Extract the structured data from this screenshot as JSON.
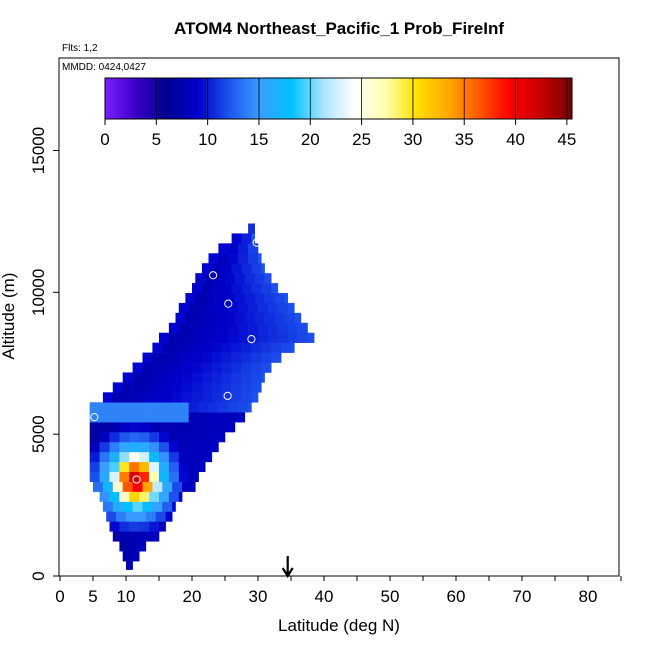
{
  "chart_data": {
    "type": "heatmap",
    "title": "ATOM4 Northeast_Pacific_1 Prob_FireInf",
    "flights_note": "Flts: 1,2",
    "date_note": "MMDD: 0424,0427",
    "xlabel": "Latitude (deg N)",
    "ylabel": "Altitude (m)",
    "xlim": [
      0,
      85
    ],
    "ylim": [
      0,
      17500
    ],
    "x_ticks": [
      0,
      5,
      10,
      20,
      30,
      40,
      50,
      60,
      70,
      80
    ],
    "y_ticks": [
      0,
      5000,
      10000,
      15000
    ],
    "colorbar": {
      "range": [
        0,
        45.5
      ],
      "ticks": [
        0,
        5,
        10,
        15,
        20,
        25,
        30,
        35,
        40,
        45
      ],
      "colors": [
        "#7e1cff",
        "#3a00c8",
        "#00008f",
        "#0000cc",
        "#1e55ee",
        "#3aa0ff",
        "#00c0ff",
        "#a8e4ff",
        "#ffffff",
        "#ffffb0",
        "#ffe000",
        "#ffaa00",
        "#ff5a00",
        "#ff0000",
        "#c80000",
        "#780000"
      ]
    },
    "arrow_marker_x": 34.5,
    "circle_markers": [
      {
        "x": 29.8,
        "y": 11750
      },
      {
        "x": 23.2,
        "y": 10600
      },
      {
        "x": 25.5,
        "y": 9600
      },
      {
        "x": 29.0,
        "y": 8350
      },
      {
        "x": 25.4,
        "y": 6350
      },
      {
        "x": 5.2,
        "y": 5600
      },
      {
        "x": 11.6,
        "y": 3400
      }
    ],
    "profile": {
      "bin_height_m": 350,
      "rows": [
        {
          "y": 400,
          "x0": 10.0,
          "x1": 11.0
        },
        {
          "y": 700,
          "x0": 9.5,
          "x1": 12.0
        },
        {
          "y": 1050,
          "x0": 9.0,
          "x1": 13.0
        },
        {
          "y": 1400,
          "x0": 8.0,
          "x1": 15.0
        },
        {
          "y": 1750,
          "x0": 7.5,
          "x1": 16.0
        },
        {
          "y": 2100,
          "x0": 7.0,
          "x1": 17.0
        },
        {
          "y": 2450,
          "x0": 6.5,
          "x1": 17.5
        },
        {
          "y": 2800,
          "x0": 6.0,
          "x1": 18.5
        },
        {
          "y": 3150,
          "x0": 5.0,
          "x1": 20.5
        },
        {
          "y": 3500,
          "x0": 4.5,
          "x1": 21.0
        },
        {
          "y": 3850,
          "x0": 4.5,
          "x1": 22.0
        },
        {
          "y": 4200,
          "x0": 4.5,
          "x1": 23.0
        },
        {
          "y": 4550,
          "x0": 4.5,
          "x1": 24.0
        },
        {
          "y": 4900,
          "x0": 4.5,
          "x1": 25.0
        },
        {
          "y": 5250,
          "x0": 4.5,
          "x1": 26.5
        },
        {
          "y": 5600,
          "x0": 4.5,
          "x1": 28.0
        },
        {
          "y": 5950,
          "x0": 4.5,
          "x1": 29.0
        },
        {
          "y": 6300,
          "x0": 6.5,
          "x1": 30.0
        },
        {
          "y": 6650,
          "x0": 8.0,
          "x1": 30.5
        },
        {
          "y": 7000,
          "x0": 9.5,
          "x1": 31.0
        },
        {
          "y": 7350,
          "x0": 11.0,
          "x1": 32.0
        },
        {
          "y": 7700,
          "x0": 12.5,
          "x1": 33.5
        },
        {
          "y": 8050,
          "x0": 14.0,
          "x1": 35.5
        },
        {
          "y": 8400,
          "x0": 15.0,
          "x1": 38.5
        },
        {
          "y": 8750,
          "x0": 16.5,
          "x1": 37.5
        },
        {
          "y": 9100,
          "x0": 17.5,
          "x1": 36.5
        },
        {
          "y": 9450,
          "x0": 18.0,
          "x1": 35.5
        },
        {
          "y": 9800,
          "x0": 19.0,
          "x1": 34.5
        },
        {
          "y": 10150,
          "x0": 20.0,
          "x1": 33.0
        },
        {
          "y": 10500,
          "x0": 20.5,
          "x1": 32.0
        },
        {
          "y": 10850,
          "x0": 21.5,
          "x1": 31.0
        },
        {
          "y": 11200,
          "x0": 22.5,
          "x1": 30.5
        },
        {
          "y": 11550,
          "x0": 24.0,
          "x1": 30.0
        },
        {
          "y": 11900,
          "x0": 26.0,
          "x1": 29.5
        },
        {
          "y": 12250,
          "x0": 28.5,
          "x1": 29.5
        }
      ]
    },
    "hotspot": {
      "x": 11.5,
      "y": 3400,
      "peak_value": 42
    }
  }
}
